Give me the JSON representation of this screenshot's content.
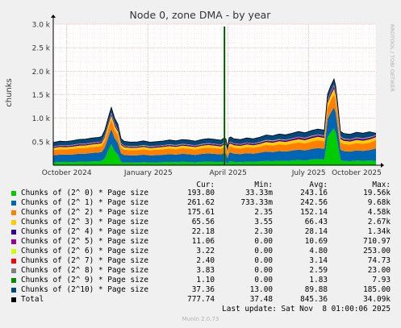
{
  "title": "Node 0, zone DMA - by year",
  "watermark": "RRDTOOL / TOBI OETIKER",
  "footer": "Munin 2.0.73",
  "last_update": "Last update: Sat Nov  8 01:00:06 2025",
  "columns": {
    "cur": "Cur:",
    "min": "Min:",
    "avg": "Avg:",
    "max": "Max:"
  },
  "legend": [
    {
      "label": "Chunks of (2^ 0) * Page size",
      "color": "#00cc00",
      "cur": "193.80",
      "min": "33.33m",
      "avg": "243.16",
      "max": "19.56k"
    },
    {
      "label": "Chunks of (2^ 1) * Page size",
      "color": "#0066b3",
      "cur": "261.62",
      "min": "733.33m",
      "avg": "242.56",
      "max": "9.68k"
    },
    {
      "label": "Chunks of (2^ 2) * Page size",
      "color": "#ff8000",
      "cur": "175.61",
      "min": "2.35",
      "avg": "152.14",
      "max": "4.58k"
    },
    {
      "label": "Chunks of (2^ 3) * Page size",
      "color": "#ffcc00",
      "cur": "65.56",
      "min": "3.55",
      "avg": "66.43",
      "max": "2.67k"
    },
    {
      "label": "Chunks of (2^ 4) * Page size",
      "color": "#330099",
      "cur": "22.18",
      "min": "2.30",
      "avg": "28.14",
      "max": "1.34k"
    },
    {
      "label": "Chunks of (2^ 5) * Page size",
      "color": "#990099",
      "cur": "11.06",
      "min": "0.00",
      "avg": "10.69",
      "max": "710.97"
    },
    {
      "label": "Chunks of (2^ 6) * Page size",
      "color": "#ccff00",
      "cur": "3.22",
      "min": "0.00",
      "avg": "4.80",
      "max": "253.00"
    },
    {
      "label": "Chunks of (2^ 7) * Page size",
      "color": "#ff0000",
      "cur": "2.40",
      "min": "0.00",
      "avg": "3.14",
      "max": "74.73"
    },
    {
      "label": "Chunks of (2^ 8) * Page size",
      "color": "#808080",
      "cur": "3.83",
      "min": "0.00",
      "avg": "2.59",
      "max": "23.00"
    },
    {
      "label": "Chunks of (2^ 9) * Page size",
      "color": "#008f00",
      "cur": "1.10",
      "min": "0.00",
      "avg": "1.83",
      "max": "7.93"
    },
    {
      "label": "Chunks of (2^10) * Page size",
      "color": "#00487d",
      "cur": "37.36",
      "min": "13.00",
      "avg": "89.88",
      "max": "185.00"
    },
    {
      "label": "Total",
      "color": "#000000",
      "cur": "777.74",
      "min": "37.48",
      "avg": "845.36",
      "max": "34.09k"
    }
  ],
  "chart_data": {
    "type": "area",
    "title": "Node 0, zone DMA - by year",
    "ylabel": "chunks",
    "xlabel": "",
    "ylim": [
      0,
      3000
    ],
    "y_ticks": [
      500,
      1000,
      1500,
      2000,
      2500,
      3000
    ],
    "y_tick_labels": [
      "0.5 k",
      "1.0 k",
      "1.5 k",
      "2.0 k",
      "2.5 k",
      "3.0 k"
    ],
    "x_tick_labels": [
      "October 2024",
      "January 2025",
      "April 2025",
      "July 2025",
      "October 2025"
    ],
    "x_tick_positions": [
      0.0417,
      0.2945,
      0.5417,
      0.7917,
      1.0417
    ],
    "grid": true,
    "x_fraction": [
      0.0,
      0.02,
      0.04,
      0.06,
      0.08,
      0.1,
      0.12,
      0.14,
      0.15,
      0.16,
      0.175,
      0.18,
      0.19,
      0.2,
      0.21,
      0.22,
      0.24,
      0.26,
      0.28,
      0.3,
      0.32,
      0.34,
      0.36,
      0.38,
      0.4,
      0.42,
      0.44,
      0.46,
      0.48,
      0.5,
      0.52,
      0.53,
      0.535,
      0.54,
      0.545,
      0.55,
      0.56,
      0.58,
      0.6,
      0.62,
      0.64,
      0.66,
      0.68,
      0.7,
      0.72,
      0.74,
      0.76,
      0.78,
      0.8,
      0.82,
      0.84,
      0.85,
      0.86,
      0.87,
      0.875,
      0.88,
      0.89,
      0.9,
      0.92,
      0.94,
      0.96,
      0.98,
      1.0
    ],
    "series": [
      {
        "name": "Chunks of (2^ 0) * Page size",
        "values": [
          60,
          65,
          70,
          62,
          75,
          70,
          80,
          85,
          90,
          150,
          380,
          450,
          300,
          230,
          70,
          55,
          60,
          55,
          65,
          58,
          60,
          62,
          70,
          65,
          72,
          68,
          60,
          70,
          75,
          70,
          65,
          80,
          70,
          30,
          80,
          85,
          70,
          65,
          75,
          70,
          80,
          90,
          85,
          95,
          90,
          100,
          110,
          100,
          120,
          130,
          120,
          600,
          700,
          780,
          700,
          520,
          110,
          90,
          85,
          100,
          95,
          100,
          95
        ]
      },
      {
        "name": "Chunks of (2^ 1) * Page size",
        "values": [
          150,
          160,
          155,
          165,
          170,
          175,
          180,
          185,
          190,
          230,
          300,
          320,
          280,
          250,
          180,
          160,
          150,
          155,
          160,
          150,
          155,
          160,
          165,
          160,
          170,
          165,
          160,
          170,
          175,
          170,
          165,
          180,
          175,
          120,
          180,
          185,
          175,
          170,
          180,
          175,
          185,
          200,
          195,
          205,
          200,
          210,
          220,
          215,
          225,
          235,
          230,
          380,
          420,
          450,
          420,
          360,
          220,
          210,
          205,
          215,
          210,
          220,
          262
        ]
      },
      {
        "name": "Chunks of (2^ 2) * Page size",
        "values": [
          110,
          115,
          112,
          118,
          120,
          122,
          125,
          128,
          130,
          150,
          190,
          200,
          180,
          165,
          125,
          115,
          110,
          112,
          115,
          110,
          112,
          115,
          118,
          115,
          120,
          118,
          115,
          120,
          125,
          122,
          118,
          128,
          125,
          90,
          128,
          130,
          125,
          122,
          128,
          125,
          130,
          140,
          138,
          145,
          142,
          148,
          155,
          150,
          158,
          165,
          160,
          240,
          260,
          280,
          260,
          230,
          158,
          150,
          148,
          155,
          150,
          158,
          176
        ]
      },
      {
        "name": "Chunks of (2^ 3) * Page size",
        "values": [
          45,
          48,
          47,
          50,
          52,
          53,
          55,
          56,
          57,
          65,
          80,
          85,
          78,
          72,
          55,
          50,
          48,
          49,
          50,
          48,
          49,
          50,
          52,
          50,
          53,
          52,
          50,
          53,
          55,
          54,
          52,
          57,
          55,
          40,
          57,
          58,
          55,
          54,
          57,
          55,
          58,
          62,
          61,
          64,
          63,
          66,
          69,
          67,
          70,
          73,
          71,
          100,
          110,
          118,
          110,
          98,
          70,
          67,
          66,
          69,
          67,
          70,
          66
        ]
      },
      {
        "name": "Chunks of (2^ 4) * Page size",
        "values": [
          18,
          19,
          19,
          20,
          21,
          21,
          22,
          22,
          23,
          26,
          32,
          34,
          31,
          29,
          22,
          20,
          19,
          20,
          20,
          19,
          20,
          20,
          21,
          20,
          21,
          21,
          20,
          21,
          22,
          22,
          21,
          23,
          22,
          16,
          23,
          23,
          22,
          22,
          23,
          22,
          23,
          25,
          24,
          26,
          25,
          26,
          28,
          27,
          28,
          29,
          28,
          40,
          44,
          47,
          44,
          39,
          28,
          27,
          26,
          28,
          27,
          28,
          22
        ]
      },
      {
        "name": "Chunks of (2^ 5) * Page size",
        "values": [
          8,
          8,
          8,
          9,
          9,
          9,
          9,
          9,
          10,
          11,
          14,
          15,
          13,
          12,
          9,
          8,
          8,
          8,
          9,
          8,
          8,
          9,
          9,
          9,
          9,
          9,
          8,
          9,
          9,
          9,
          9,
          10,
          9,
          7,
          10,
          10,
          9,
          9,
          10,
          9,
          10,
          11,
          10,
          11,
          11,
          11,
          12,
          11,
          12,
          12,
          12,
          17,
          19,
          20,
          19,
          17,
          12,
          11,
          11,
          12,
          11,
          12,
          11
        ]
      },
      {
        "name": "Chunks of (2^ 6) * Page size",
        "values": [
          4,
          4,
          4,
          4,
          4,
          4,
          4,
          4,
          4,
          5,
          6,
          6,
          6,
          5,
          4,
          4,
          4,
          4,
          4,
          4,
          4,
          4,
          4,
          4,
          4,
          4,
          4,
          4,
          4,
          4,
          4,
          4,
          4,
          3,
          4,
          4,
          4,
          4,
          4,
          4,
          4,
          5,
          5,
          5,
          5,
          5,
          5,
          5,
          5,
          5,
          5,
          7,
          8,
          8,
          8,
          7,
          5,
          5,
          5,
          5,
          5,
          5,
          3
        ]
      },
      {
        "name": "Chunks of (2^ 7) * Page size",
        "values": [
          3,
          3,
          3,
          3,
          3,
          3,
          3,
          3,
          3,
          3,
          4,
          4,
          4,
          4,
          3,
          3,
          3,
          3,
          3,
          3,
          3,
          3,
          3,
          3,
          3,
          3,
          3,
          3,
          3,
          3,
          3,
          3,
          3,
          2,
          3,
          3,
          3,
          3,
          3,
          3,
          3,
          3,
          3,
          3,
          3,
          3,
          4,
          4,
          4,
          4,
          4,
          5,
          5,
          6,
          5,
          5,
          4,
          4,
          4,
          4,
          4,
          4,
          2
        ]
      },
      {
        "name": "Chunks of (2^ 8) * Page size",
        "values": [
          2,
          2,
          2,
          2,
          2,
          2,
          2,
          2,
          2,
          3,
          3,
          3,
          3,
          3,
          2,
          2,
          2,
          2,
          2,
          2,
          2,
          2,
          2,
          2,
          2,
          2,
          2,
          2,
          2,
          2,
          2,
          2,
          2,
          2,
          2,
          2,
          2,
          2,
          2,
          2,
          2,
          3,
          3,
          3,
          3,
          3,
          3,
          3,
          3,
          3,
          3,
          4,
          4,
          4,
          4,
          4,
          3,
          3,
          3,
          3,
          3,
          3,
          4
        ]
      },
      {
        "name": "Chunks of (2^ 9) * Page size",
        "values": [
          2,
          2,
          2,
          2,
          2,
          2,
          2,
          2,
          2,
          2,
          2,
          2,
          2,
          2,
          2,
          2,
          2,
          2,
          2,
          2,
          2,
          2,
          2,
          2,
          2,
          2,
          2,
          2,
          2,
          2,
          2,
          2,
          2,
          1,
          2,
          2,
          2,
          2,
          2,
          2,
          2,
          2,
          2,
          2,
          2,
          2,
          2,
          2,
          2,
          2,
          2,
          3,
          3,
          3,
          3,
          3,
          2,
          2,
          2,
          2,
          2,
          2,
          1
        ]
      },
      {
        "name": "Chunks of (2^10) * Page size",
        "values": [
          80,
          85,
          82,
          88,
          90,
          92,
          95,
          96,
          98,
          105,
          110,
          112,
          108,
          104,
          95,
          88,
          85,
          86,
          88,
          85,
          86,
          88,
          90,
          88,
          91,
          90,
          88,
          91,
          93,
          92,
          90,
          96,
          94,
          70,
          96,
          98,
          94,
          92,
          96,
          94,
          98,
          102,
          100,
          104,
          102,
          105,
          108,
          106,
          110,
          112,
          110,
          115,
          118,
          120,
          118,
          114,
          108,
          106,
          104,
          108,
          106,
          110,
          37
        ]
      }
    ],
    "spike": {
      "x_fraction": 0.5305,
      "value": 2950,
      "series": "Chunks of (2^ 0) * Page size"
    }
  }
}
